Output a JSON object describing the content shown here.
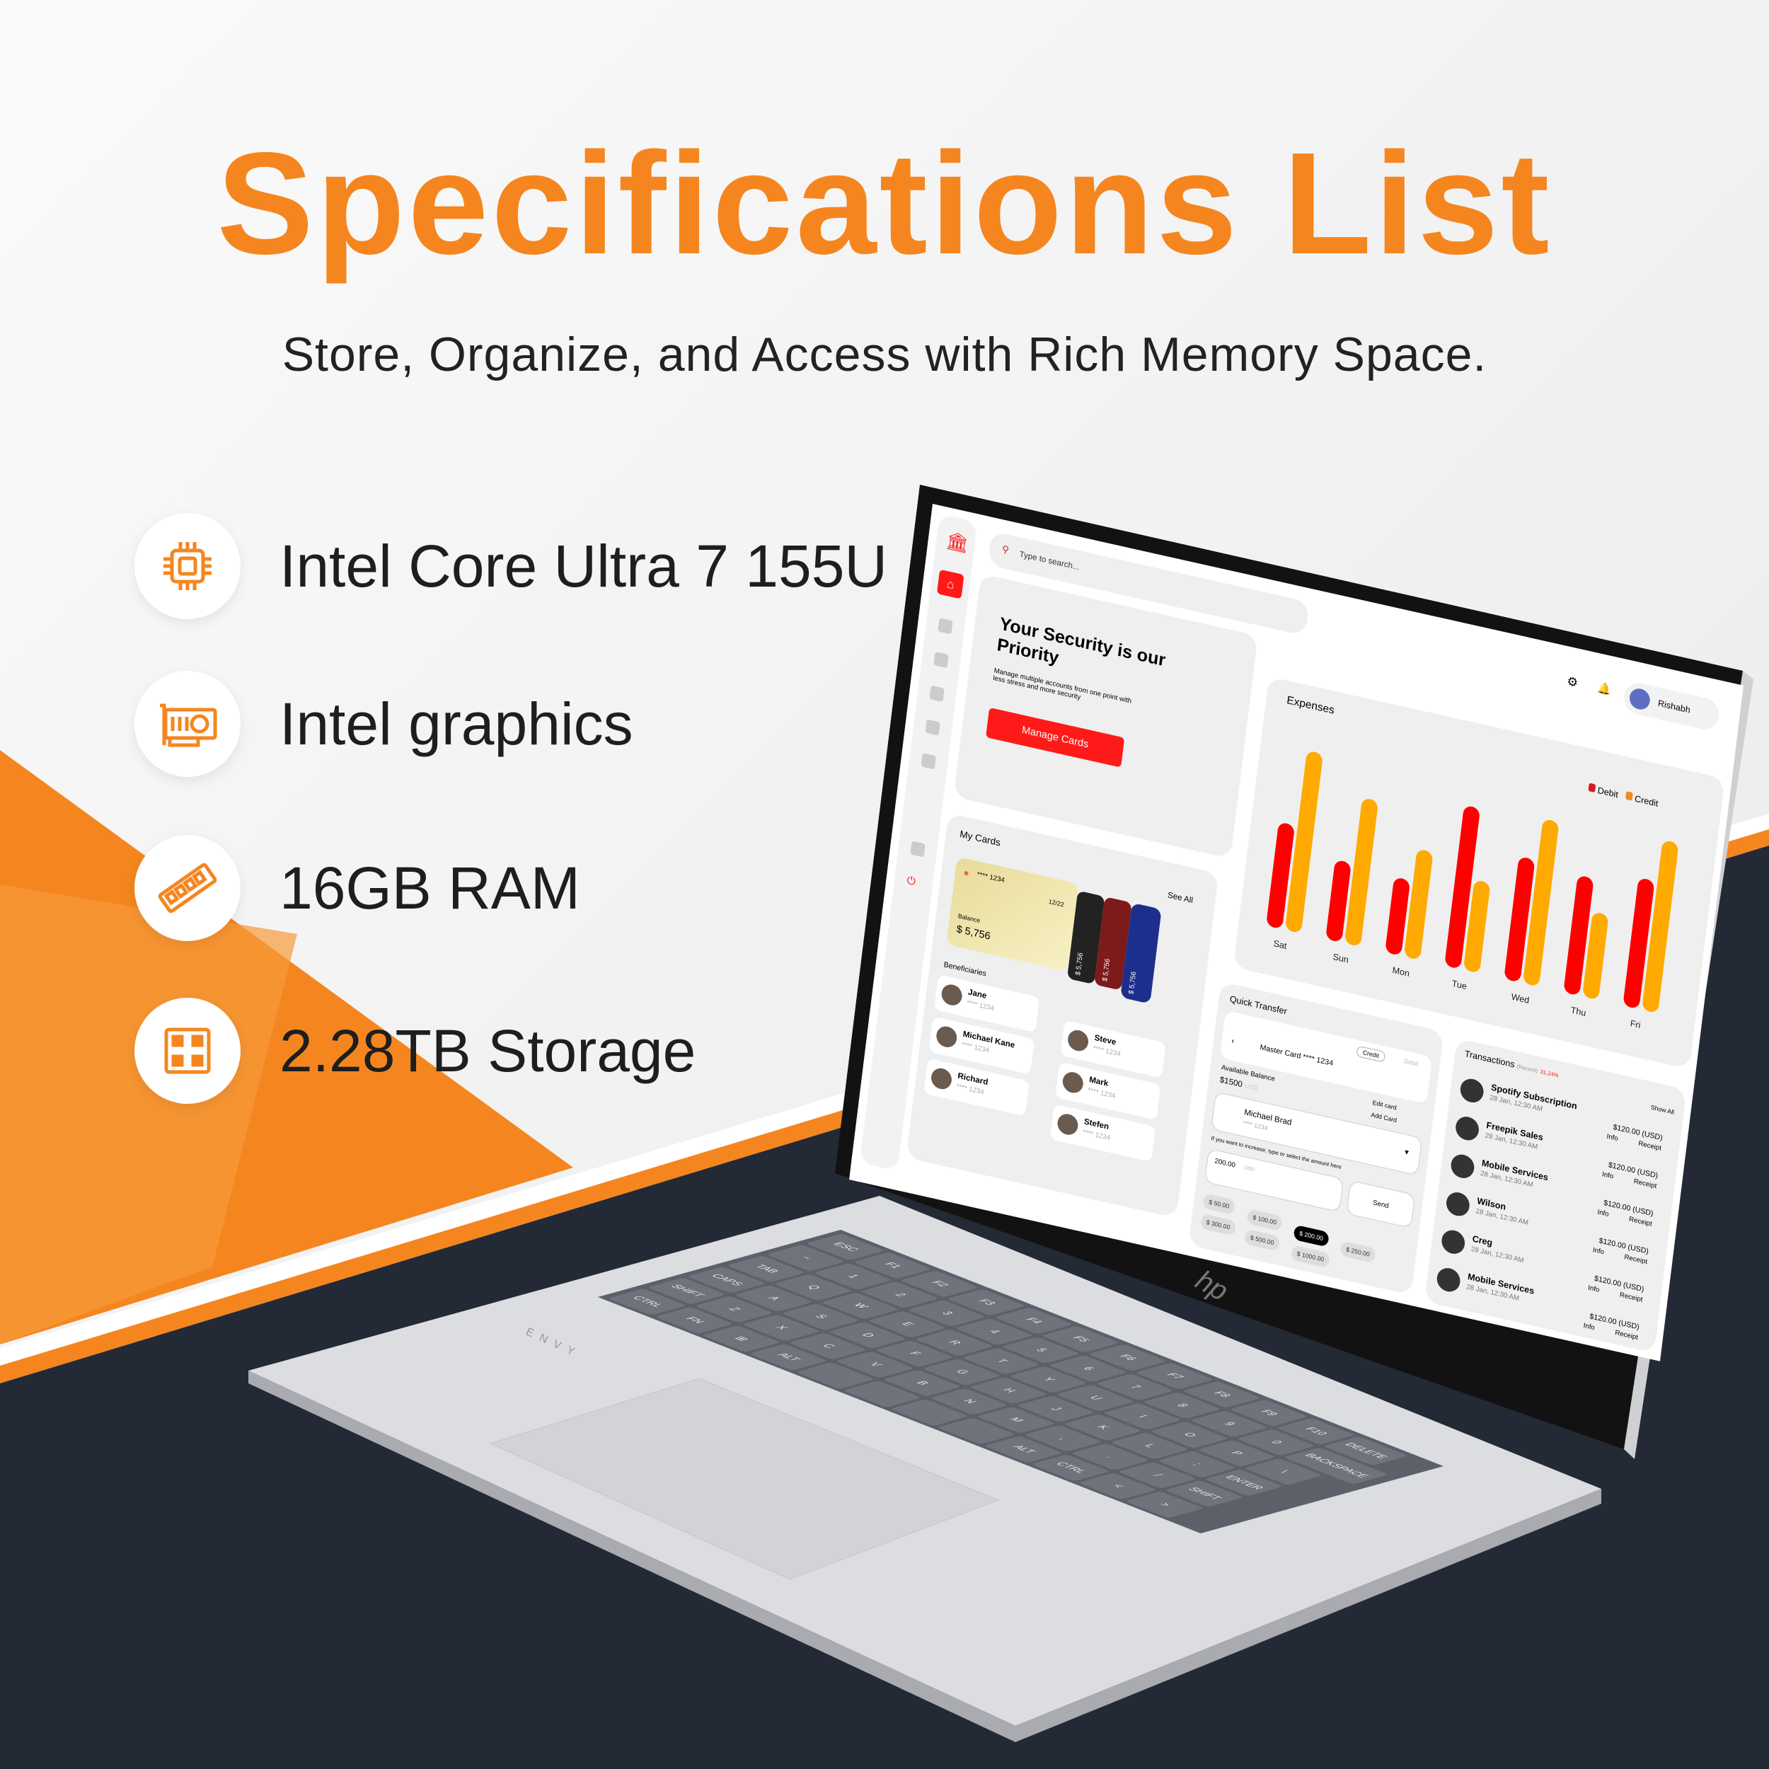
{
  "header": {
    "title": "Specifications List",
    "subtitle": "Store, Organize, and Access with Rich Memory Space."
  },
  "specs": [
    {
      "icon": "cpu-chip-icon",
      "label": "Intel Core Ultra 7 155U"
    },
    {
      "icon": "graphics-card-icon",
      "label": "Intel graphics"
    },
    {
      "icon": "ram-module-icon",
      "label": "16GB RAM"
    },
    {
      "icon": "storage-icon",
      "label": "2.28TB Storage"
    }
  ],
  "colors": {
    "brand_orange": "#f5861f",
    "navy": "#232a35",
    "debit": "#ff0000",
    "credit": "#ffaa00",
    "app_accent": "#ff1a1a"
  },
  "laptop": {
    "brand": "hp",
    "model": "ENVY"
  },
  "screen": {
    "search_placeholder": "Type to search...",
    "user_name": "Rishabh",
    "security": {
      "title": "Your Security is our Priority",
      "text": "Manage multiple accounts from one point with less stress and more security",
      "button": "Manage Cards"
    },
    "expenses": {
      "title": "Expenses",
      "legend": [
        "Debit",
        "Credit"
      ],
      "days": [
        "Sat",
        "Sun",
        "Mon",
        "Tue",
        "Wed",
        "Thu",
        "Fri"
      ],
      "debit": [
        55,
        42,
        40,
        85,
        65,
        62,
        68
      ],
      "credit": [
        95,
        77,
        57,
        48,
        87,
        45,
        90
      ]
    },
    "my_cards": {
      "title": "My Cards",
      "see_all": "See All",
      "card_number": "**** 1234",
      "expiry": "12/22",
      "balance_label": "Balance",
      "balance": "$ 5,756",
      "stack_balance": "$ 5,756"
    },
    "beneficiaries": {
      "title": "Beneficiaries",
      "items": [
        {
          "name": "Jane",
          "card": "**** 1234"
        },
        {
          "name": "Michael Kane",
          "card": "**** 1234"
        },
        {
          "name": "Richard",
          "card": "**** 1234"
        },
        {
          "name": "Steve",
          "card": "**** 1234"
        },
        {
          "name": "Mark",
          "card": "**** 1234"
        },
        {
          "name": "Stefen",
          "card": "**** 1234"
        }
      ]
    },
    "quick_transfer": {
      "title": "Quick Transfer",
      "toggle": [
        "Credit",
        "Debit"
      ],
      "card": "Master Card **** 1234",
      "available_label": "Available Balance",
      "available": "$1500",
      "available_unit": "USD",
      "edit": "Edit card",
      "add": "Add Card",
      "recipient": "Michael Brad",
      "recipient_card": "**** 1234",
      "hint": "If you want to increase, type or select the amount here",
      "amount": "200.00",
      "amount_unit": "USD",
      "send": "Send",
      "amounts": [
        "$ 50.00",
        "$ 100.00",
        "$ 200.00",
        "$ 250.00",
        "$ 300.00",
        "$ 500.00",
        "$ 1000.00"
      ],
      "selected_amount": "$ 200.00"
    },
    "transactions": {
      "title": "Transactions",
      "subtitle": "(Recent)",
      "change": "31.24%",
      "show_all": "Show All",
      "info": "Info",
      "receipt": "Receipt",
      "items": [
        {
          "name": "Spotify Subscription",
          "date": "28 Jan, 12:30 AM",
          "amount": "$120.00 (USD)"
        },
        {
          "name": "Freepik Sales",
          "date": "28 Jan, 12:30 AM",
          "amount": "$120.00 (USD)"
        },
        {
          "name": "Mobile Services",
          "date": "28 Jan, 12:30 AM",
          "amount": "$120.00 (USD)"
        },
        {
          "name": "Wilson",
          "date": "28 Jan, 12:30 AM",
          "amount": "$120.00 (USD)"
        },
        {
          "name": "Creg",
          "date": "28 Jan, 12:30 AM",
          "amount": "$120.00 (USD)"
        },
        {
          "name": "Mobile Services",
          "date": "28 Jan, 12:30 AM",
          "amount": "$120.00 (USD)"
        }
      ]
    }
  },
  "keyboard": {
    "rows": [
      [
        "ESC",
        "F1",
        "F2",
        "F3",
        "F4",
        "F5",
        "F6",
        "F7",
        "F8",
        "F9",
        "F10",
        "DELETE"
      ],
      [
        "~",
        "1",
        "2",
        "3",
        "4",
        "5",
        "6",
        "7",
        "8",
        "9",
        "0",
        "BACKSPACE"
      ],
      [
        "TAB",
        "Q",
        "W",
        "E",
        "R",
        "T",
        "Y",
        "U",
        "I",
        "O",
        "P",
        "\\"
      ],
      [
        "CAPS",
        "A",
        "S",
        "D",
        "F",
        "G",
        "H",
        "J",
        "K",
        "L",
        ";",
        "ENTER"
      ],
      [
        "SHIFT",
        "Z",
        "X",
        "C",
        "V",
        "B",
        "N",
        "M",
        ",",
        ".",
        "/",
        "SHIFT"
      ],
      [
        "CTRL",
        "FN",
        "⊞",
        "ALT",
        "",
        "",
        "",
        "",
        "ALT",
        "CTRL",
        "<",
        ">"
      ]
    ]
  }
}
